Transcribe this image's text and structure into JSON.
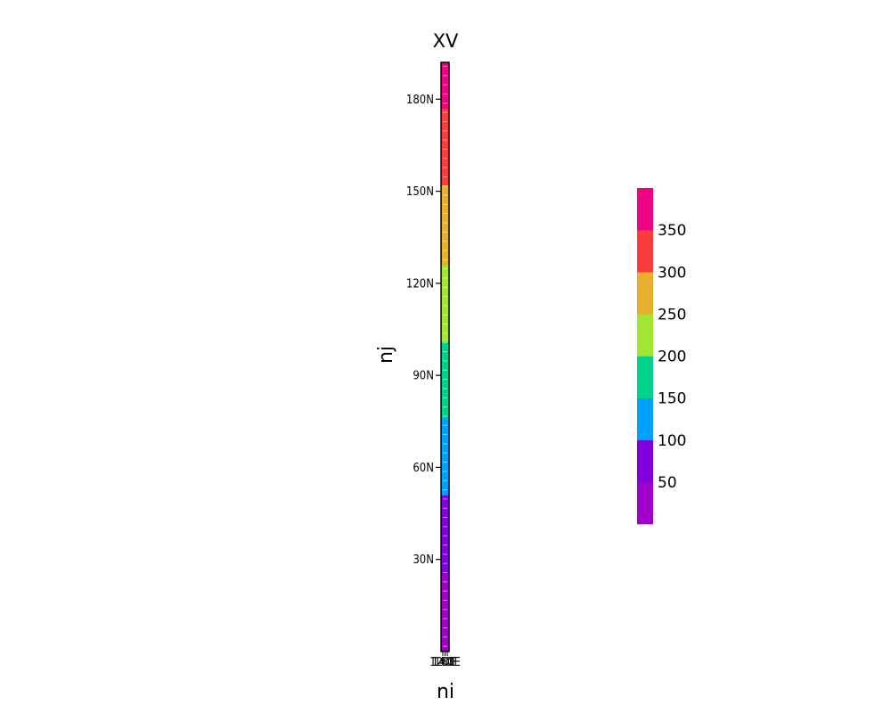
{
  "chart_data": {
    "type": "heatmap",
    "title": "XV",
    "xlabel": "ni",
    "ylabel": "nj",
    "ylim": [
      0,
      192
    ],
    "y_ticks": [
      {
        "value": 30,
        "label": "30N"
      },
      {
        "value": 60,
        "label": "60N"
      },
      {
        "value": 90,
        "label": "90N"
      },
      {
        "value": 120,
        "label": "120N"
      },
      {
        "value": 150,
        "label": "150N"
      },
      {
        "value": 180,
        "label": "180N"
      }
    ],
    "x_tick_labels": [
      "120E",
      "140E",
      "160E"
    ],
    "rows": 192,
    "row_value_range": [
      0,
      380
    ],
    "colorbar": {
      "levels": [
        0,
        50,
        100,
        150,
        200,
        250,
        300,
        350,
        400
      ],
      "labels": [
        "50",
        "100",
        "150",
        "200",
        "250",
        "300",
        "350"
      ],
      "colors": [
        "#a000c8",
        "#8200dc",
        "#00a0ff",
        "#00d28c",
        "#a0e632",
        "#e6af2d",
        "#fa3c3c",
        "#f00082"
      ]
    }
  }
}
